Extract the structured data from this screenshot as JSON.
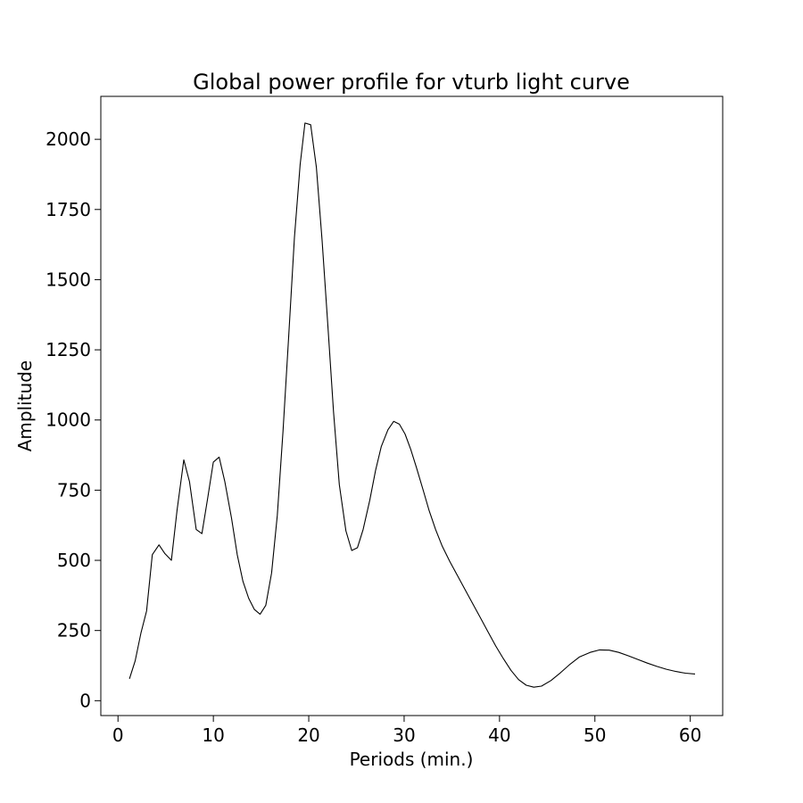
{
  "chart_data": {
    "type": "line",
    "title": "Global power profile for vturb light curve",
    "xlabel": "Periods (min.)",
    "ylabel": "Amplitude",
    "xlim": [
      -1.8,
      63.4
    ],
    "ylim": [
      -53,
      2153
    ],
    "xticks": [
      0,
      10,
      20,
      30,
      40,
      50,
      60
    ],
    "xtick_labels": [
      "0",
      "10",
      "20",
      "30",
      "40",
      "50",
      "60"
    ],
    "yticks": [
      0,
      250,
      500,
      750,
      1000,
      1250,
      1500,
      1750,
      2000
    ],
    "ytick_labels": [
      "0",
      "250",
      "500",
      "750",
      "1000",
      "1250",
      "1500",
      "1750",
      "2000"
    ],
    "grid": false,
    "line_color": "#000000",
    "series": [
      {
        "x": [
          1.2,
          1.8,
          2.4,
          3.0,
          3.6,
          4.3,
          4.9,
          5.6,
          6.2,
          6.9,
          7.5,
          8.2,
          8.8,
          9.4,
          10.0,
          10.6,
          11.2,
          11.9,
          12.5,
          13.1,
          13.7,
          14.3,
          14.9,
          15.5,
          16.1,
          16.7,
          17.3,
          17.9,
          18.5,
          19.1,
          19.6,
          20.2,
          20.8,
          21.4,
          22.0,
          22.6,
          23.2,
          23.9,
          24.5,
          25.1,
          25.7,
          26.4,
          27.0,
          27.6,
          28.3,
          28.9,
          29.5,
          30.1,
          30.7,
          31.3,
          32.0,
          32.6,
          33.3,
          34.0,
          34.8,
          35.6,
          36.4,
          37.2,
          38.0,
          38.8,
          39.6,
          40.4,
          41.2,
          42.0,
          42.8,
          43.6,
          44.4,
          45.4,
          46.4,
          47.4,
          48.4,
          49.5,
          50.5,
          51.5,
          52.5,
          53.5,
          54.5,
          55.5,
          56.5,
          57.5,
          58.5,
          59.5,
          60.5
        ],
        "y": [
          78,
          142,
          240,
          320,
          520,
          555,
          525,
          500,
          680,
          858,
          780,
          610,
          595,
          720,
          850,
          868,
          780,
          650,
          520,
          425,
          365,
          325,
          308,
          340,
          455,
          660,
          960,
          1300,
          1650,
          1910,
          2058,
          2052,
          1900,
          1640,
          1340,
          1030,
          770,
          605,
          535,
          545,
          610,
          715,
          820,
          905,
          965,
          995,
          985,
          950,
          895,
          830,
          750,
          680,
          610,
          550,
          495,
          445,
          395,
          345,
          295,
          245,
          195,
          150,
          108,
          75,
          55,
          48,
          52,
          72,
          100,
          130,
          156,
          172,
          181,
          180,
          172,
          160,
          147,
          134,
          122,
          112,
          104,
          98,
          95
        ]
      }
    ]
  }
}
